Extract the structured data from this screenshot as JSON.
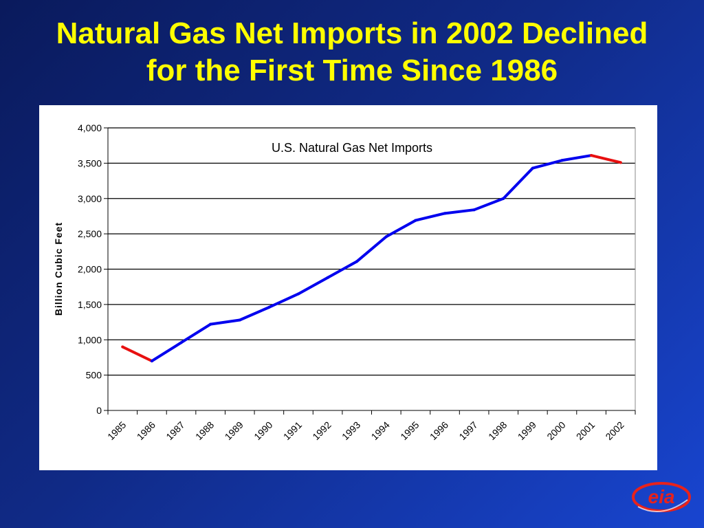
{
  "slide": {
    "title_line1": "Natural Gas Net Imports in 2002 Declined",
    "title_line2": "for the First Time Since 1986",
    "logo_text": "eia"
  },
  "colors": {
    "background_dark": "#0a1a5c",
    "background_light": "#1845d0",
    "title": "#ffff00",
    "series_main": "#0000ee",
    "series_decline": "#e81010",
    "logo": "#e8221b"
  },
  "chart_data": {
    "type": "line",
    "title": "U.S. Natural Gas Net Imports",
    "xlabel": "",
    "ylabel": "Billion Cubic Feet",
    "categories": [
      "1985",
      "1986",
      "1987",
      "1988",
      "1989",
      "1990",
      "1991",
      "1992",
      "1993",
      "1994",
      "1995",
      "1996",
      "1997",
      "1998",
      "1999",
      "2000",
      "2001",
      "2002"
    ],
    "ylim": [
      0,
      4000
    ],
    "yticks": [
      0,
      500,
      1000,
      1500,
      2000,
      2500,
      3000,
      3500,
      4000
    ],
    "ytick_labels": [
      "0",
      "500",
      "1,000",
      "1,500",
      "2,000",
      "2,500",
      "3,000",
      "3,500",
      "4,000"
    ],
    "grid": true,
    "values": [
      900,
      700,
      960,
      1220,
      1280,
      1460,
      1650,
      1880,
      2110,
      2460,
      2690,
      2790,
      2840,
      3000,
      3430,
      3540,
      3610,
      3510
    ],
    "segment_colors": [
      "#e81010",
      "#0000ee",
      "#0000ee",
      "#0000ee",
      "#0000ee",
      "#0000ee",
      "#0000ee",
      "#0000ee",
      "#0000ee",
      "#0000ee",
      "#0000ee",
      "#0000ee",
      "#0000ee",
      "#0000ee",
      "#0000ee",
      "#0000ee",
      "#e81010"
    ]
  }
}
